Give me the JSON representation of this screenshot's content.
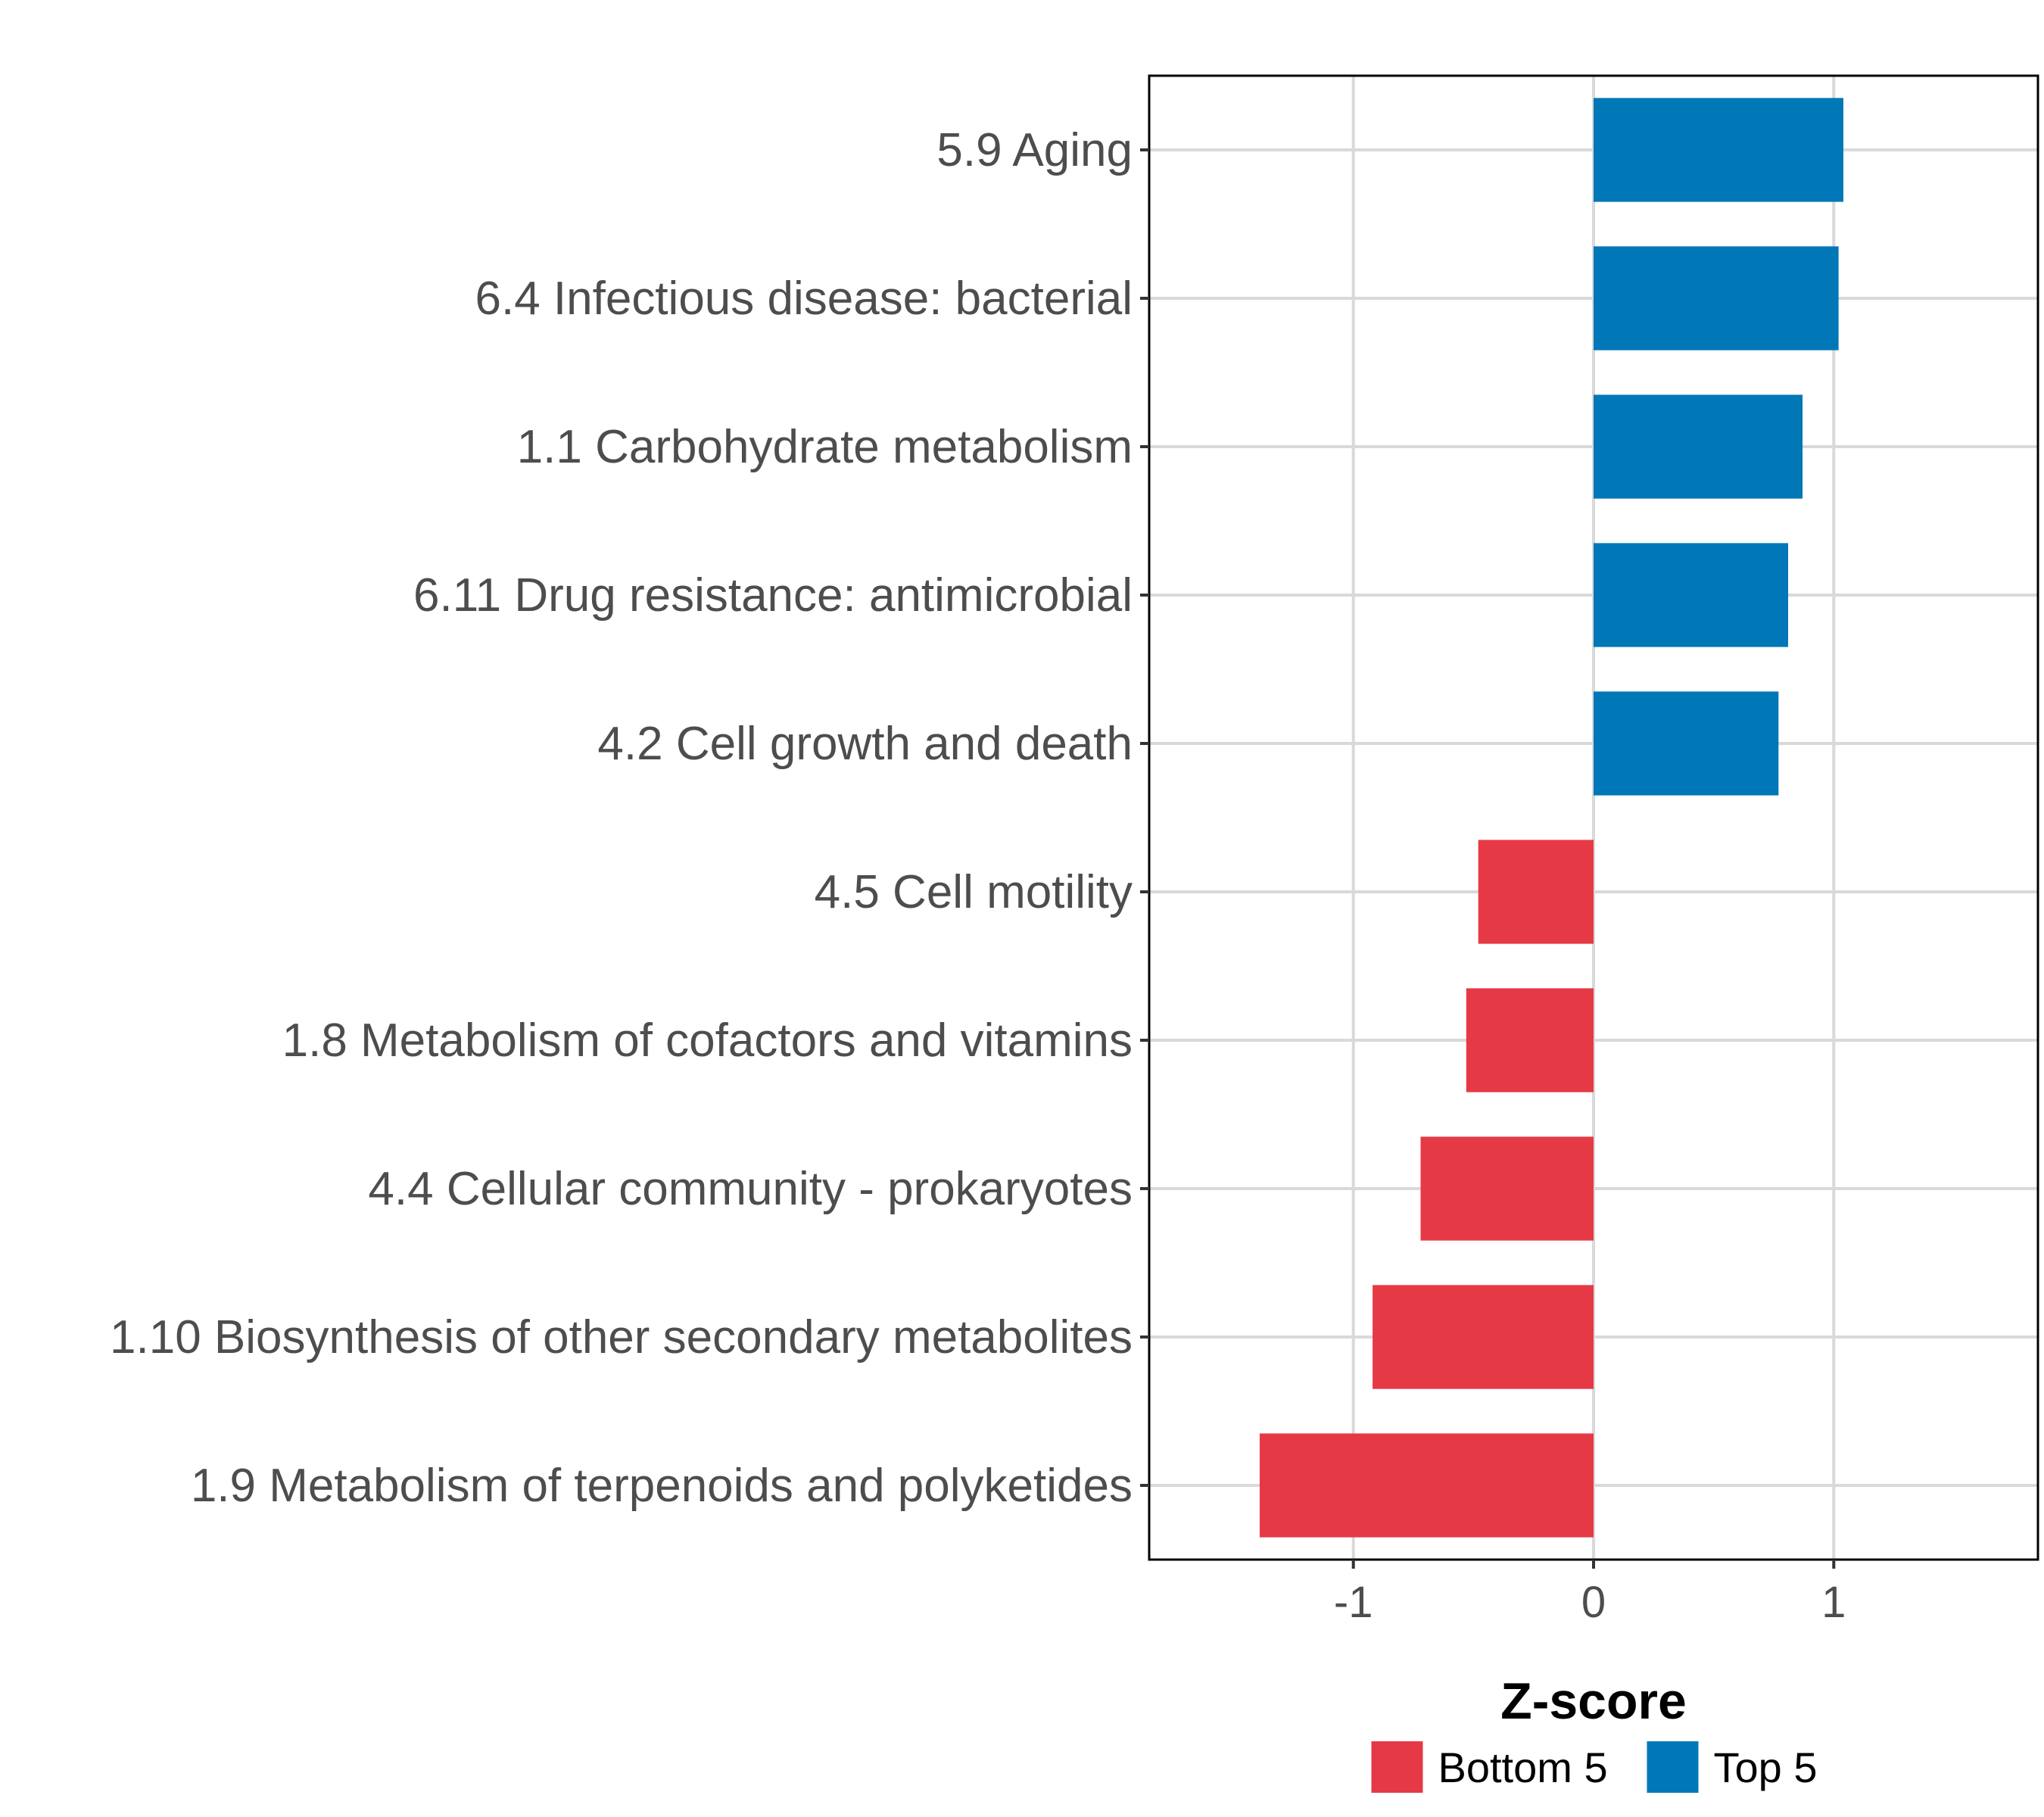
{
  "chart_data": {
    "type": "bar",
    "orientation": "horizontal",
    "categories": [
      "5.9 Aging",
      "6.4 Infectious disease: bacterial",
      "1.1 Carbohydrate metabolism",
      "6.11 Drug resistance: antimicrobial",
      "4.2 Cell growth and death",
      "4.5 Cell motility",
      "1.8 Metabolism of cofactors and vitamins",
      "4.4 Cellular community - prokaryotes",
      "1.10 Biosynthesis of other secondary metabolites",
      "1.9 Metabolism of terpenoids and polyketides"
    ],
    "values": [
      1.04,
      1.02,
      0.87,
      0.81,
      0.77,
      -0.48,
      -0.53,
      -0.72,
      -0.92,
      -1.39
    ],
    "groups": [
      "Top 5",
      "Top 5",
      "Top 5",
      "Top 5",
      "Top 5",
      "Bottom 5",
      "Bottom 5",
      "Bottom 5",
      "Bottom 5",
      "Bottom 5"
    ],
    "xlabel": "Z-score",
    "ylabel": "",
    "xlim": [
      -1.85,
      1.85
    ],
    "xticks": [
      -1,
      0,
      1
    ],
    "xtick_labels": [
      "-1",
      "0",
      "1"
    ],
    "grid": true,
    "legend": {
      "position": "bottom",
      "items": [
        {
          "label": "Bottom 5",
          "color": "#E63946"
        },
        {
          "label": "Top 5",
          "color": "#0077B6"
        }
      ]
    },
    "colors": {
      "Top 5": "#0077B6",
      "Bottom 5": "#E63946"
    }
  }
}
